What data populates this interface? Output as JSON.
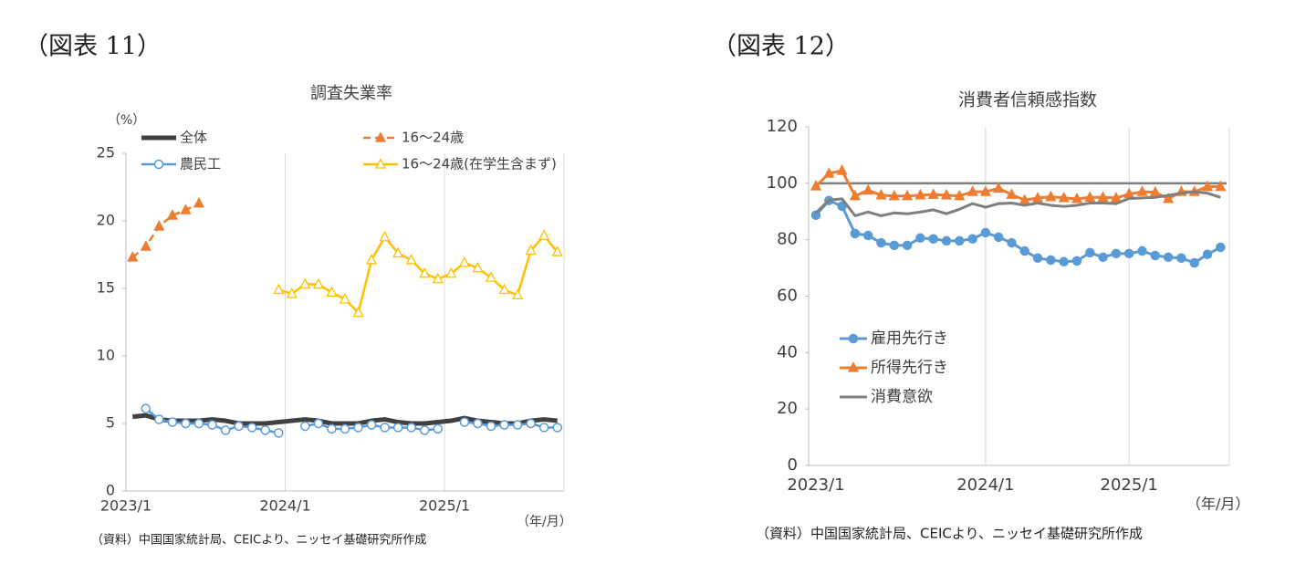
{
  "chart_data": [
    {
      "type": "line",
      "figure_label": "（図表 11）",
      "title": "調査失業率",
      "y_unit": "（%）",
      "x_unit": "（年/月）",
      "source": "（資料）中国国家統計局、CEICより、ニッセイ基礎研究所作成",
      "categories": [
        "2023/1",
        null,
        null,
        null,
        null,
        null,
        null,
        null,
        null,
        null,
        null,
        null,
        "2024/1",
        null,
        null,
        null,
        null,
        null,
        null,
        null,
        null,
        null,
        null,
        null,
        "2025/1",
        null,
        null,
        null,
        null,
        null,
        null,
        null,
        null
      ],
      "ylim": [
        0,
        25
      ],
      "yticks": [
        0,
        5,
        10,
        15,
        20,
        25
      ],
      "grid": true,
      "series": [
        {
          "name": "全体",
          "color": "#404040",
          "marker": "none",
          "values": [
            5.5,
            5.6,
            5.3,
            5.2,
            5.2,
            5.2,
            5.3,
            5.2,
            5.0,
            5.0,
            5.0,
            5.1,
            5.2,
            5.3,
            5.2,
            5.0,
            5.0,
            5.0,
            5.2,
            5.3,
            5.1,
            5.0,
            5.0,
            5.1,
            5.2,
            5.4,
            5.2,
            5.1,
            5.0,
            5.0,
            5.2,
            5.3,
            5.2
          ]
        },
        {
          "name": "16～24歳",
          "color": "#ed7d31",
          "marker": "triangle",
          "dashed": true,
          "values": [
            17.3,
            18.1,
            19.6,
            20.4,
            20.8,
            21.3,
            null,
            null,
            null,
            null,
            null,
            null,
            null,
            null,
            null,
            null,
            null,
            null,
            null,
            null,
            null,
            null,
            null,
            null,
            null,
            null,
            null,
            null,
            null,
            null,
            null,
            null,
            null
          ]
        },
        {
          "name": "農民工",
          "color": "#5b9bd5",
          "marker": "circle",
          "marker_fill": "#ffffff",
          "values": [
            null,
            6.1,
            5.3,
            5.1,
            5.0,
            5.0,
            4.9,
            4.5,
            4.8,
            4.7,
            4.5,
            4.3,
            null,
            4.8,
            5.0,
            4.6,
            4.6,
            4.7,
            4.9,
            4.7,
            4.7,
            4.7,
            4.5,
            4.6,
            null,
            5.1,
            5.0,
            4.8,
            4.9,
            4.9,
            5.0,
            4.7,
            4.7
          ]
        },
        {
          "name": "16～24歳(在学生含まず)",
          "color": "#ffc000",
          "marker": "triangle",
          "marker_fill": "#ffffff",
          "values": [
            null,
            null,
            null,
            null,
            null,
            null,
            null,
            null,
            null,
            null,
            null,
            14.9,
            14.6,
            15.3,
            15.3,
            14.7,
            14.2,
            13.2,
            17.1,
            18.8,
            17.6,
            17.1,
            16.1,
            15.7,
            16.1,
            16.9,
            16.5,
            15.8,
            14.9,
            14.5,
            17.8,
            18.9,
            17.7
          ]
        }
      ]
    },
    {
      "type": "line",
      "figure_label": "（図表 12）",
      "title": "消費者信頼感指数",
      "x_unit": "（年/月）",
      "source": "（資料）中国国家統計局、CEICより、ニッセイ基礎研究所作成",
      "categories": [
        "2023/1",
        null,
        null,
        null,
        null,
        null,
        null,
        null,
        null,
        null,
        null,
        null,
        null,
        "2024/1",
        null,
        null,
        null,
        null,
        null,
        null,
        null,
        null,
        null,
        null,
        "2025/1",
        null,
        null,
        null,
        null,
        null,
        null,
        null
      ],
      "ylim": [
        0,
        120
      ],
      "yticks": [
        0,
        20,
        40,
        60,
        80,
        100,
        120
      ],
      "grid": true,
      "reference_line": 100,
      "series": [
        {
          "name": "雇用先行き",
          "color": "#5b9bd5",
          "marker": "circle",
          "values": [
            88.7,
            93.9,
            91.9,
            82.2,
            81.5,
            78.9,
            78.0,
            78.0,
            80.6,
            80.3,
            79.6,
            79.6,
            80.3,
            82.5,
            80.9,
            78.9,
            76.0,
            73.5,
            72.8,
            72.2,
            72.5,
            75.4,
            73.8,
            75.1,
            75.1,
            76.0,
            74.4,
            73.8,
            73.5,
            71.8,
            74.8,
            77.3
          ]
        },
        {
          "name": "所得先行き",
          "color": "#ed7d31",
          "marker": "triangle",
          "values": [
            99.0,
            103.5,
            104.5,
            95.5,
            97.5,
            95.8,
            95.5,
            95.5,
            95.8,
            96.0,
            95.8,
            95.5,
            97.0,
            97.0,
            98.2,
            96.0,
            94.0,
            94.8,
            95.2,
            94.8,
            94.5,
            95.0,
            95.0,
            94.8,
            96.2,
            97.0,
            96.8,
            94.5,
            97.0,
            97.0,
            98.8,
            98.8
          ]
        },
        {
          "name": "消費意欲",
          "color": "#7f7f7f",
          "marker": "none",
          "values": [
            89.5,
            94.0,
            94.5,
            88.5,
            89.8,
            88.5,
            89.5,
            89.2,
            89.8,
            90.6,
            89.2,
            90.8,
            92.8,
            91.5,
            92.8,
            93.0,
            92.2,
            93.0,
            92.2,
            91.8,
            92.2,
            93.0,
            93.0,
            92.8,
            94.6,
            94.8,
            95.0,
            95.7,
            96.5,
            97.0,
            96.5,
            95.0
          ]
        }
      ]
    }
  ]
}
